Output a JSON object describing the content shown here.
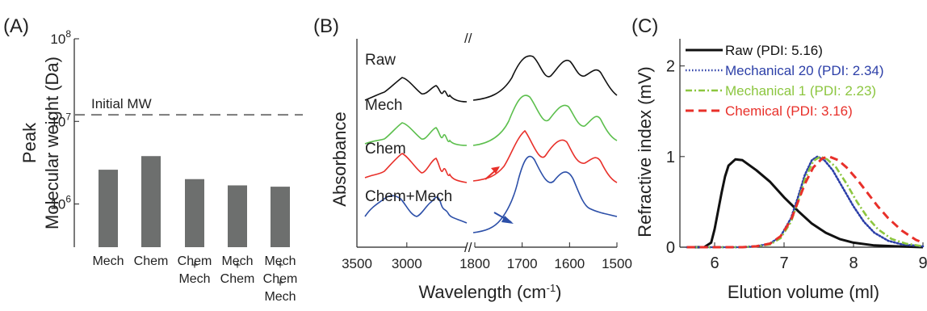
{
  "chart_data": [
    {
      "panel": "(A)",
      "type": "bar",
      "ylabel_lines": [
        "Peak",
        "Molecular weight (Da)"
      ],
      "yscale": "log",
      "ylim": [
        300000,
        100000000
      ],
      "ytick_labels": [
        {
          "base": "10",
          "exp": "6",
          "value": 1000000
        },
        {
          "base": "10",
          "exp": "7",
          "value": 10000000
        },
        {
          "base": "10",
          "exp": "8",
          "value": 100000000
        }
      ],
      "categories": [
        {
          "lines": [
            "Mech"
          ]
        },
        {
          "lines": [
            "Chem"
          ]
        },
        {
          "lines": [
            "Chem",
            "+",
            "Mech"
          ]
        },
        {
          "lines": [
            "Mech",
            "+",
            "Chem"
          ]
        },
        {
          "lines": [
            "Mech",
            "+",
            "Chem",
            "+",
            "Mech"
          ]
        }
      ],
      "values": [
        2600000,
        3800000,
        2000000,
        1680000,
        1620000
      ],
      "bar_color": "#6d6f6e",
      "reference_line": {
        "label": "Initial MW",
        "value": 12000000,
        "color": "#7a7a7a"
      }
    },
    {
      "panel": "(B)",
      "type": "line",
      "ylabel": "Absorbance",
      "xlabel": "Wavelength (cm-1)",
      "xlabel_base": "Wavelength (cm",
      "xlabel_sup": "-1",
      "xlabel_end": ")",
      "axis_break": "//",
      "x_segments": [
        {
          "xlim": [
            3500,
            2400
          ],
          "ticks": [
            3500,
            3000
          ]
        },
        {
          "xlim": [
            1800,
            1500
          ],
          "ticks": [
            1800,
            1700,
            1600,
            1500
          ]
        }
      ],
      "series": [
        {
          "name": "Raw",
          "color": "#111111"
        },
        {
          "name": "Mech",
          "color": "#5cbf4d"
        },
        {
          "name": "Chem",
          "color": "#e8302a"
        },
        {
          "name": "Chem+Mech",
          "color": "#2c4fa8"
        }
      ],
      "annotations": [
        {
          "type": "arrow",
          "series": "Chem",
          "x": 1715,
          "color": "#e8302a"
        },
        {
          "type": "arrow",
          "series": "Chem+Mech",
          "x": 1705,
          "color": "#2c4fa8"
        }
      ]
    },
    {
      "panel": "(C)",
      "type": "line",
      "xlabel": "Elution volume (ml)",
      "ylabel": "Refractive index (mV)",
      "xlim": [
        5.5,
        9
      ],
      "ylim": [
        0,
        2.3
      ],
      "xticks": [
        6,
        7,
        8,
        9
      ],
      "yticks": [
        0,
        1,
        2
      ],
      "legend_position": "top",
      "series": [
        {
          "name": "Raw (PDI: 5.16)",
          "color": "#111111",
          "style": "solid",
          "peak": 6.3,
          "points": [
            [
              5.6,
              0
            ],
            [
              5.85,
              0
            ],
            [
              5.95,
              0.05
            ],
            [
              6.0,
              0.2
            ],
            [
              6.05,
              0.4
            ],
            [
              6.1,
              0.6
            ],
            [
              6.15,
              0.78
            ],
            [
              6.2,
              0.9
            ],
            [
              6.3,
              0.97
            ],
            [
              6.4,
              0.96
            ],
            [
              6.6,
              0.85
            ],
            [
              6.8,
              0.72
            ],
            [
              7.0,
              0.55
            ],
            [
              7.2,
              0.4
            ],
            [
              7.4,
              0.26
            ],
            [
              7.6,
              0.16
            ],
            [
              7.8,
              0.09
            ],
            [
              8.0,
              0.05
            ],
            [
              8.3,
              0.02
            ],
            [
              8.6,
              0.01
            ],
            [
              9.0,
              0
            ]
          ]
        },
        {
          "name": "Mechanical 20 (PDI: 2.34)",
          "color": "#2c3fa8",
          "style": "dotted",
          "peak": 7.48,
          "points": [
            [
              5.6,
              0
            ],
            [
              6.4,
              0
            ],
            [
              6.6,
              0.01
            ],
            [
              6.8,
              0.04
            ],
            [
              6.95,
              0.12
            ],
            [
              7.1,
              0.32
            ],
            [
              7.2,
              0.55
            ],
            [
              7.3,
              0.8
            ],
            [
              7.4,
              0.96
            ],
            [
              7.48,
              1.0
            ],
            [
              7.58,
              0.96
            ],
            [
              7.7,
              0.85
            ],
            [
              7.85,
              0.65
            ],
            [
              8.0,
              0.45
            ],
            [
              8.15,
              0.28
            ],
            [
              8.3,
              0.16
            ],
            [
              8.5,
              0.07
            ],
            [
              8.7,
              0.03
            ],
            [
              9.0,
              0.01
            ]
          ]
        },
        {
          "name": "Mechanical 1 (PDI: 2.23)",
          "color": "#8cc63f",
          "style": "dashdot",
          "peak": 7.52,
          "points": [
            [
              5.6,
              0
            ],
            [
              6.4,
              0
            ],
            [
              6.6,
              0.01
            ],
            [
              6.8,
              0.03
            ],
            [
              6.95,
              0.1
            ],
            [
              7.1,
              0.28
            ],
            [
              7.2,
              0.5
            ],
            [
              7.3,
              0.75
            ],
            [
              7.42,
              0.95
            ],
            [
              7.52,
              1.0
            ],
            [
              7.62,
              0.97
            ],
            [
              7.75,
              0.88
            ],
            [
              7.9,
              0.7
            ],
            [
              8.05,
              0.5
            ],
            [
              8.2,
              0.33
            ],
            [
              8.35,
              0.2
            ],
            [
              8.55,
              0.09
            ],
            [
              8.75,
              0.04
            ],
            [
              9.0,
              0.01
            ]
          ]
        },
        {
          "name": "Chemical (PDI: 3.16)",
          "color": "#e8302a",
          "style": "dashed",
          "peak": 7.65,
          "points": [
            [
              5.6,
              0
            ],
            [
              6.4,
              0
            ],
            [
              6.6,
              0.01
            ],
            [
              6.8,
              0.04
            ],
            [
              6.95,
              0.12
            ],
            [
              7.1,
              0.3
            ],
            [
              7.2,
              0.5
            ],
            [
              7.3,
              0.7
            ],
            [
              7.42,
              0.88
            ],
            [
              7.55,
              0.98
            ],
            [
              7.65,
              1.0
            ],
            [
              7.78,
              0.96
            ],
            [
              7.9,
              0.88
            ],
            [
              8.05,
              0.75
            ],
            [
              8.2,
              0.6
            ],
            [
              8.35,
              0.45
            ],
            [
              8.5,
              0.32
            ],
            [
              8.7,
              0.18
            ],
            [
              8.9,
              0.08
            ],
            [
              9.0,
              0.05
            ]
          ]
        }
      ]
    }
  ]
}
